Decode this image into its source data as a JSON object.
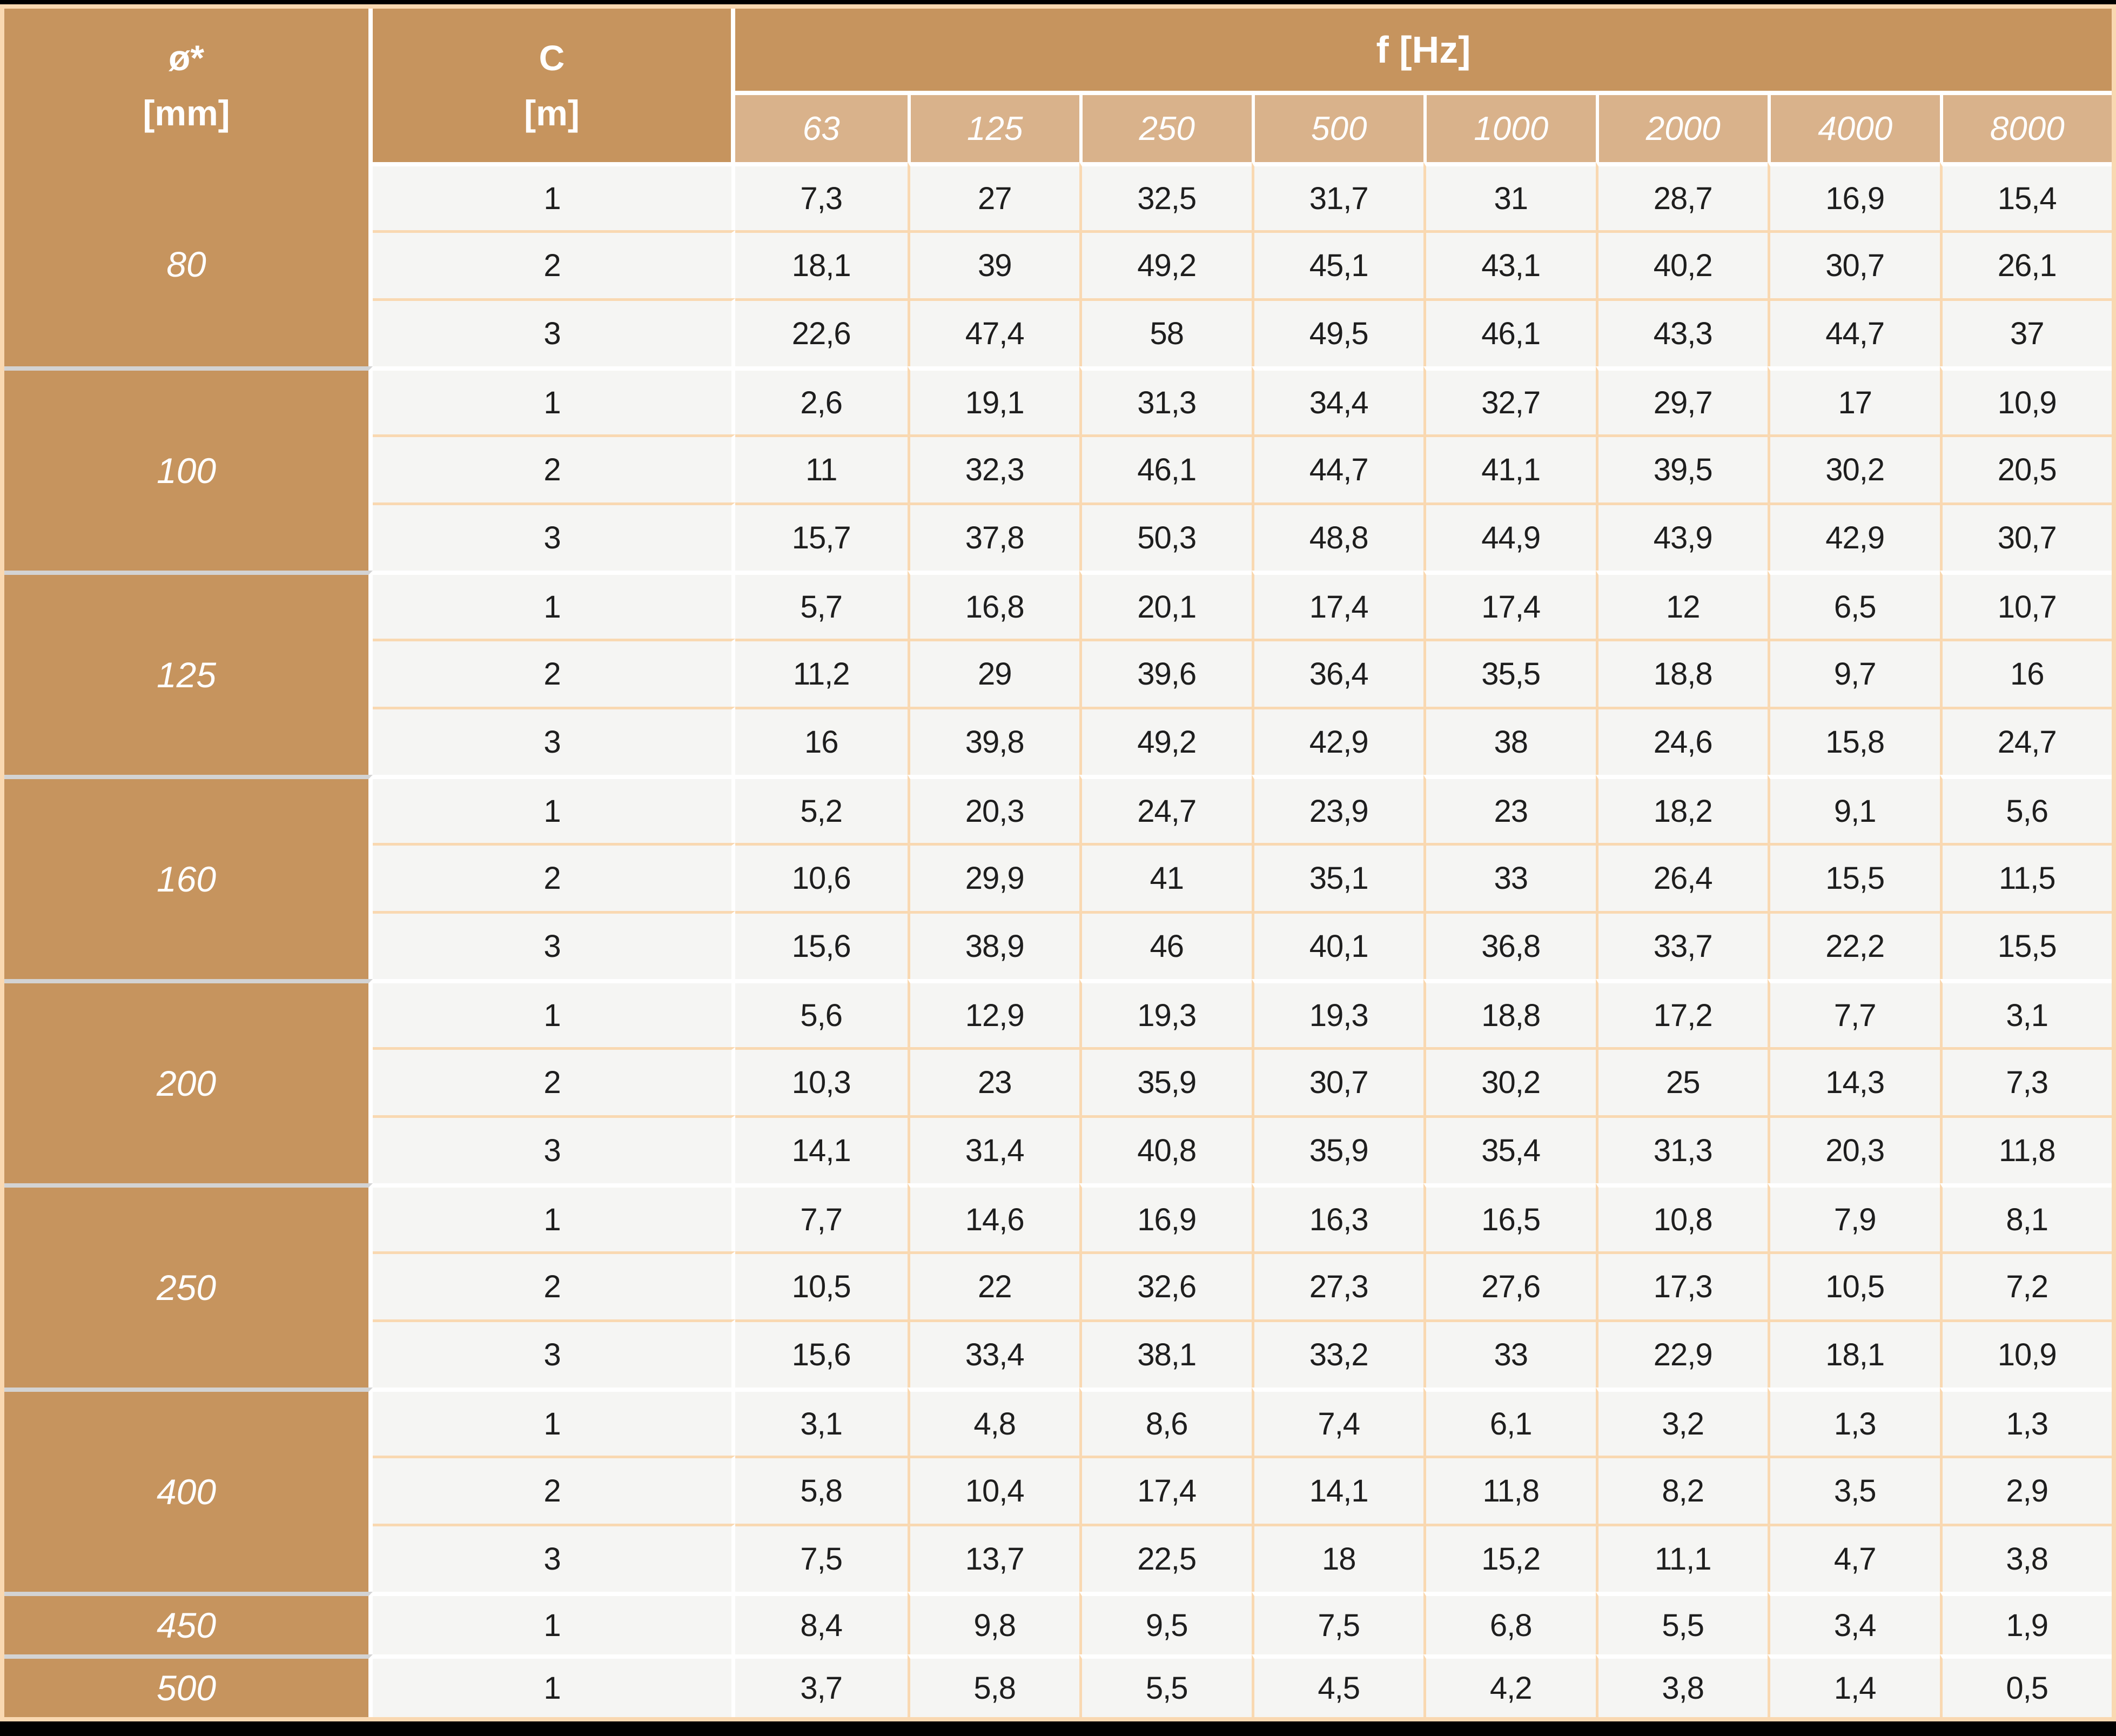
{
  "table": {
    "col_headers": {
      "diameter": {
        "line1": "ø*",
        "line2": "[mm]"
      },
      "length": {
        "line1": "C",
        "line2": "[m]"
      },
      "frequency_group": "f [Hz]",
      "frequencies": [
        "63",
        "125",
        "250",
        "500",
        "1000",
        "2000",
        "4000",
        "8000"
      ]
    },
    "groups": [
      {
        "diameter": "80",
        "rows": [
          {
            "c": "1",
            "values": [
              "7,3",
              "27",
              "32,5",
              "31,7",
              "31",
              "28,7",
              "16,9",
              "15,4"
            ]
          },
          {
            "c": "2",
            "values": [
              "18,1",
              "39",
              "49,2",
              "45,1",
              "43,1",
              "40,2",
              "30,7",
              "26,1"
            ]
          },
          {
            "c": "3",
            "values": [
              "22,6",
              "47,4",
              "58",
              "49,5",
              "46,1",
              "43,3",
              "44,7",
              "37"
            ]
          }
        ]
      },
      {
        "diameter": "100",
        "rows": [
          {
            "c": "1",
            "values": [
              "2,6",
              "19,1",
              "31,3",
              "34,4",
              "32,7",
              "29,7",
              "17",
              "10,9"
            ]
          },
          {
            "c": "2",
            "values": [
              "11",
              "32,3",
              "46,1",
              "44,7",
              "41,1",
              "39,5",
              "30,2",
              "20,5"
            ]
          },
          {
            "c": "3",
            "values": [
              "15,7",
              "37,8",
              "50,3",
              "48,8",
              "44,9",
              "43,9",
              "42,9",
              "30,7"
            ]
          }
        ]
      },
      {
        "diameter": "125",
        "rows": [
          {
            "c": "1",
            "values": [
              "5,7",
              "16,8",
              "20,1",
              "17,4",
              "17,4",
              "12",
              "6,5",
              "10,7"
            ]
          },
          {
            "c": "2",
            "values": [
              "11,2",
              "29",
              "39,6",
              "36,4",
              "35,5",
              "18,8",
              "9,7",
              "16"
            ]
          },
          {
            "c": "3",
            "values": [
              "16",
              "39,8",
              "49,2",
              "42,9",
              "38",
              "24,6",
              "15,8",
              "24,7"
            ]
          }
        ]
      },
      {
        "diameter": "160",
        "rows": [
          {
            "c": "1",
            "values": [
              "5,2",
              "20,3",
              "24,7",
              "23,9",
              "23",
              "18,2",
              "9,1",
              "5,6"
            ]
          },
          {
            "c": "2",
            "values": [
              "10,6",
              "29,9",
              "41",
              "35,1",
              "33",
              "26,4",
              "15,5",
              "11,5"
            ]
          },
          {
            "c": "3",
            "values": [
              "15,6",
              "38,9",
              "46",
              "40,1",
              "36,8",
              "33,7",
              "22,2",
              "15,5"
            ]
          }
        ]
      },
      {
        "diameter": "200",
        "rows": [
          {
            "c": "1",
            "values": [
              "5,6",
              "12,9",
              "19,3",
              "19,3",
              "18,8",
              "17,2",
              "7,7",
              "3,1"
            ]
          },
          {
            "c": "2",
            "values": [
              "10,3",
              "23",
              "35,9",
              "30,7",
              "30,2",
              "25",
              "14,3",
              "7,3"
            ]
          },
          {
            "c": "3",
            "values": [
              "14,1",
              "31,4",
              "40,8",
              "35,9",
              "35,4",
              "31,3",
              "20,3",
              "11,8"
            ]
          }
        ]
      },
      {
        "diameter": "250",
        "rows": [
          {
            "c": "1",
            "values": [
              "7,7",
              "14,6",
              "16,9",
              "16,3",
              "16,5",
              "10,8",
              "7,9",
              "8,1"
            ]
          },
          {
            "c": "2",
            "values": [
              "10,5",
              "22",
              "32,6",
              "27,3",
              "27,6",
              "17,3",
              "10,5",
              "7,2"
            ]
          },
          {
            "c": "3",
            "values": [
              "15,6",
              "33,4",
              "38,1",
              "33,2",
              "33",
              "22,9",
              "18,1",
              "10,9"
            ]
          }
        ]
      },
      {
        "diameter": "400",
        "rows": [
          {
            "c": "1",
            "values": [
              "3,1",
              "4,8",
              "8,6",
              "7,4",
              "6,1",
              "3,2",
              "1,3",
              "1,3"
            ]
          },
          {
            "c": "2",
            "values": [
              "5,8",
              "10,4",
              "17,4",
              "14,1",
              "11,8",
              "8,2",
              "3,5",
              "2,9"
            ]
          },
          {
            "c": "3",
            "values": [
              "7,5",
              "13,7",
              "22,5",
              "18",
              "15,2",
              "11,1",
              "4,7",
              "3,8"
            ]
          }
        ]
      },
      {
        "diameter": "450",
        "rows": [
          {
            "c": "1",
            "values": [
              "8,4",
              "9,8",
              "9,5",
              "7,5",
              "6,8",
              "5,5",
              "3,4",
              "1,9"
            ]
          }
        ]
      },
      {
        "diameter": "500",
        "rows": [
          {
            "c": "1",
            "values": [
              "3,7",
              "5,8",
              "5,5",
              "4,5",
              "4,2",
              "3,8",
              "1,4",
              "0,5"
            ]
          }
        ]
      }
    ]
  },
  "chart_data": {
    "type": "table",
    "title": "",
    "column_group_header": "f [Hz]",
    "columns": [
      "Ø* [mm]",
      "C [m]",
      "63",
      "125",
      "250",
      "500",
      "1000",
      "2000",
      "4000",
      "8000"
    ],
    "rows": [
      [
        80,
        1,
        7.3,
        27,
        32.5,
        31.7,
        31,
        28.7,
        16.9,
        15.4
      ],
      [
        80,
        2,
        18.1,
        39,
        49.2,
        45.1,
        43.1,
        40.2,
        30.7,
        26.1
      ],
      [
        80,
        3,
        22.6,
        47.4,
        58,
        49.5,
        46.1,
        43.3,
        44.7,
        37
      ],
      [
        100,
        1,
        2.6,
        19.1,
        31.3,
        34.4,
        32.7,
        29.7,
        17,
        10.9
      ],
      [
        100,
        2,
        11,
        32.3,
        46.1,
        44.7,
        41.1,
        39.5,
        30.2,
        20.5
      ],
      [
        100,
        3,
        15.7,
        37.8,
        50.3,
        48.8,
        44.9,
        43.9,
        42.9,
        30.7
      ],
      [
        125,
        1,
        5.7,
        16.8,
        20.1,
        17.4,
        17.4,
        12,
        6.5,
        10.7
      ],
      [
        125,
        2,
        11.2,
        29,
        39.6,
        36.4,
        35.5,
        18.8,
        9.7,
        16
      ],
      [
        125,
        3,
        16,
        39.8,
        49.2,
        42.9,
        38,
        24.6,
        15.8,
        24.7
      ],
      [
        160,
        1,
        5.2,
        20.3,
        24.7,
        23.9,
        23,
        18.2,
        9.1,
        5.6
      ],
      [
        160,
        2,
        10.6,
        29.9,
        41,
        35.1,
        33,
        26.4,
        15.5,
        11.5
      ],
      [
        160,
        3,
        15.6,
        38.9,
        46,
        40.1,
        36.8,
        33.7,
        22.2,
        15.5
      ],
      [
        200,
        1,
        5.6,
        12.9,
        19.3,
        19.3,
        18.8,
        17.2,
        7.7,
        3.1
      ],
      [
        200,
        2,
        10.3,
        23,
        35.9,
        30.7,
        30.2,
        25,
        14.3,
        7.3
      ],
      [
        200,
        3,
        14.1,
        31.4,
        40.8,
        35.9,
        35.4,
        31.3,
        20.3,
        11.8
      ],
      [
        250,
        1,
        7.7,
        14.6,
        16.9,
        16.3,
        16.5,
        10.8,
        7.9,
        8.1
      ],
      [
        250,
        2,
        10.5,
        22,
        32.6,
        27.3,
        27.6,
        17.3,
        10.5,
        7.2
      ],
      [
        250,
        3,
        15.6,
        33.4,
        38.1,
        33.2,
        33,
        22.9,
        18.1,
        10.9
      ],
      [
        400,
        1,
        3.1,
        4.8,
        8.6,
        7.4,
        6.1,
        3.2,
        1.3,
        1.3
      ],
      [
        400,
        2,
        5.8,
        10.4,
        17.4,
        14.1,
        11.8,
        8.2,
        3.5,
        2.9
      ],
      [
        400,
        3,
        7.5,
        13.7,
        22.5,
        18,
        15.2,
        11.1,
        4.7,
        3.8
      ],
      [
        450,
        1,
        8.4,
        9.8,
        9.5,
        7.5,
        6.8,
        5.5,
        3.4,
        1.9
      ],
      [
        500,
        1,
        3.7,
        5.8,
        5.5,
        4.5,
        4.2,
        3.8,
        1.4,
        0.5
      ]
    ]
  },
  "colors": {
    "header_brown": "#c6945e",
    "subheader_tan": "#d9b28b",
    "grid_peach": "#f9d8b1",
    "cell_bg": "#f5f5f3",
    "separator_gray": "#d3d3d3",
    "text_dark": "#1e1e1e",
    "text_white": "#ffffff",
    "frame_black": "#000000"
  }
}
